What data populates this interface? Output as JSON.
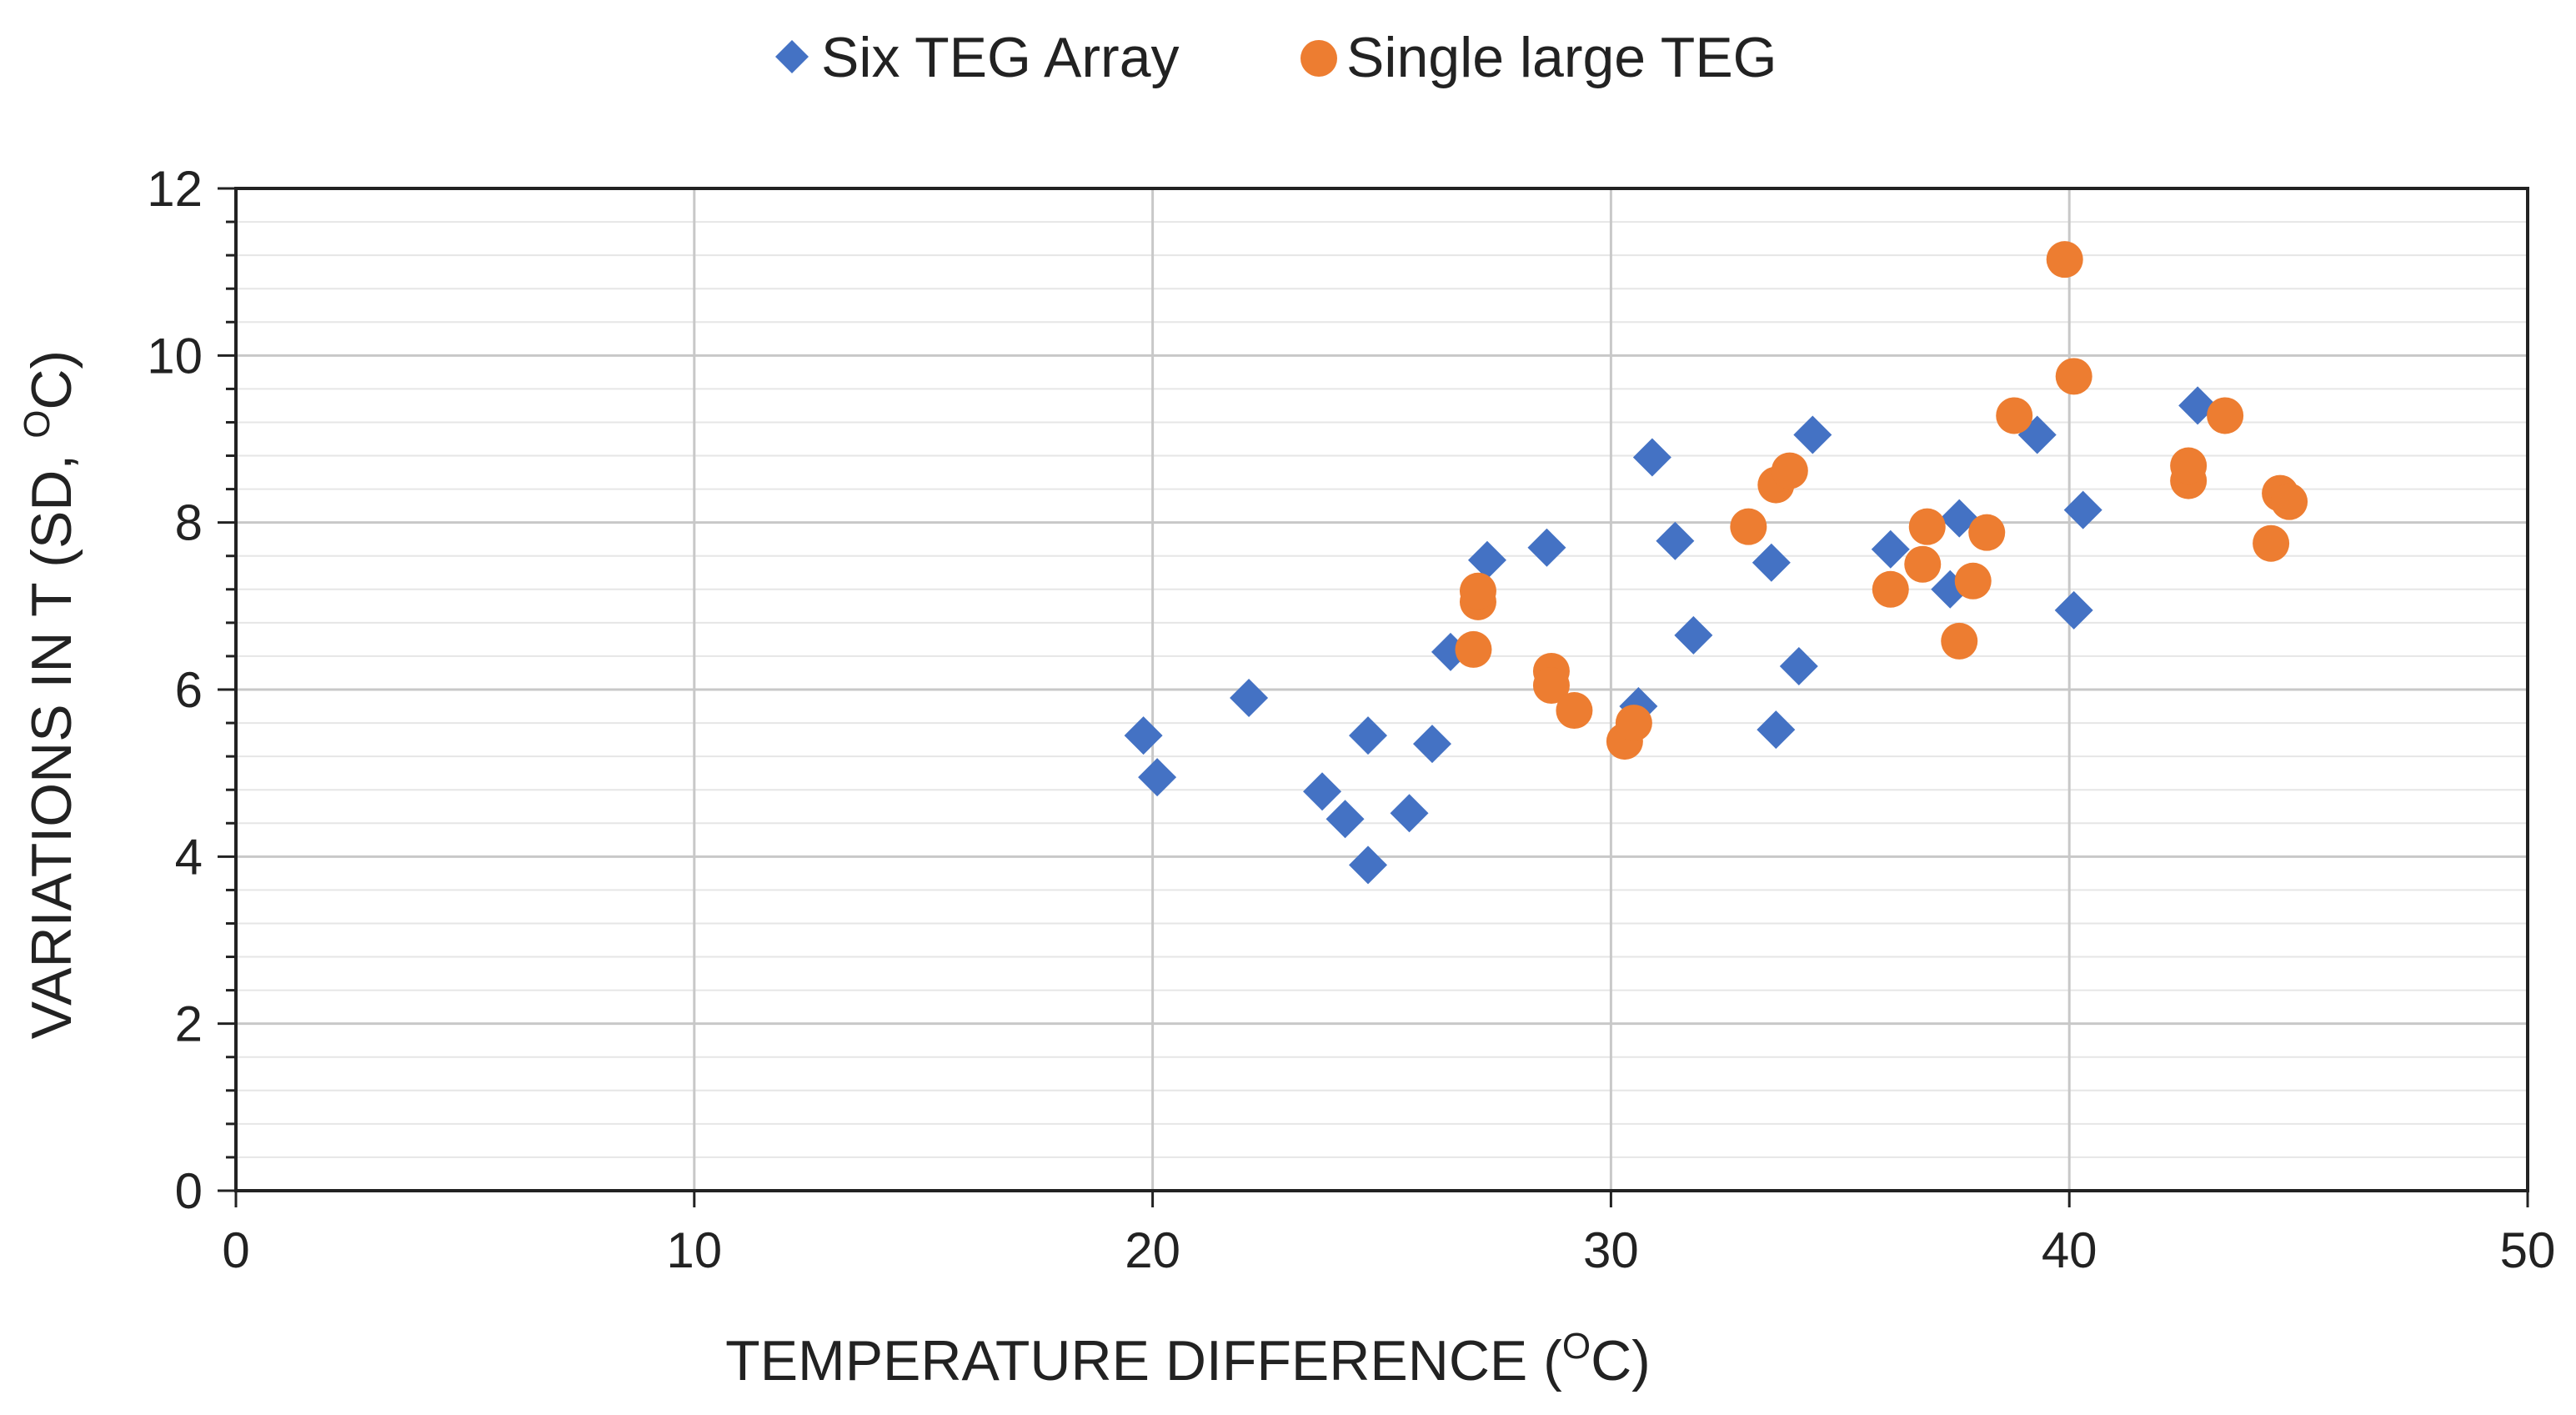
{
  "chart_data": {
    "type": "scatter",
    "title": "",
    "xlabel_prefix": "TEMPERATURE DIFFERENCE (",
    "xlabel_sup": "O",
    "xlabel_suffix": "C)",
    "ylabel_prefix": "VARIATIONS IN T (SD, ",
    "ylabel_sup": "O",
    "ylabel_suffix": "C)",
    "xlim": [
      0,
      50
    ],
    "ylim": [
      0,
      12
    ],
    "x_ticks": [
      0,
      10,
      20,
      30,
      40,
      50
    ],
    "y_ticks": [
      0,
      2,
      4,
      6,
      8,
      10,
      12
    ],
    "grid": true,
    "legend_position": "top-center",
    "colors": {
      "six": "#4472C4",
      "single": "#ED7D31",
      "grid_major": "#c8c8c8",
      "grid_minor": "#e6e6e6",
      "axis": "#222222"
    },
    "series": [
      {
        "name": "Six TEG Array",
        "marker": "diamond",
        "points": [
          [
            19.8,
            5.45
          ],
          [
            20.1,
            4.95
          ],
          [
            22.1,
            5.9
          ],
          [
            23.7,
            4.78
          ],
          [
            24.2,
            4.45
          ],
          [
            24.7,
            5.45
          ],
          [
            24.7,
            3.9
          ],
          [
            25.6,
            4.52
          ],
          [
            26.1,
            5.35
          ],
          [
            26.5,
            6.45
          ],
          [
            27.3,
            7.55
          ],
          [
            28.6,
            7.7
          ],
          [
            30.6,
            5.8
          ],
          [
            30.9,
            8.78
          ],
          [
            31.4,
            7.78
          ],
          [
            31.8,
            6.65
          ],
          [
            33.5,
            7.52
          ],
          [
            33.6,
            5.52
          ],
          [
            34.1,
            6.28
          ],
          [
            34.4,
            9.05
          ],
          [
            36.1,
            7.68
          ],
          [
            37.4,
            7.2
          ],
          [
            37.6,
            8.05
          ],
          [
            39.3,
            9.05
          ],
          [
            40.1,
            6.95
          ],
          [
            40.3,
            8.15
          ],
          [
            42.8,
            9.4
          ]
        ]
      },
      {
        "name": "Single large TEG",
        "marker": "circle",
        "points": [
          [
            27.0,
            6.48
          ],
          [
            27.1,
            7.05
          ],
          [
            27.1,
            7.18
          ],
          [
            28.7,
            6.22
          ],
          [
            28.7,
            6.05
          ],
          [
            29.2,
            5.75
          ],
          [
            30.3,
            5.38
          ],
          [
            30.5,
            5.6
          ],
          [
            33.0,
            7.95
          ],
          [
            33.6,
            8.45
          ],
          [
            33.9,
            8.62
          ],
          [
            36.1,
            7.2
          ],
          [
            36.8,
            7.5
          ],
          [
            36.9,
            7.95
          ],
          [
            37.6,
            6.58
          ],
          [
            37.9,
            7.3
          ],
          [
            38.2,
            7.88
          ],
          [
            38.8,
            9.28
          ],
          [
            39.9,
            11.15
          ],
          [
            40.1,
            9.75
          ],
          [
            42.6,
            8.5
          ],
          [
            42.6,
            8.68
          ],
          [
            43.4,
            9.28
          ],
          [
            44.4,
            7.75
          ],
          [
            44.6,
            8.35
          ],
          [
            44.8,
            8.25
          ]
        ]
      }
    ]
  }
}
